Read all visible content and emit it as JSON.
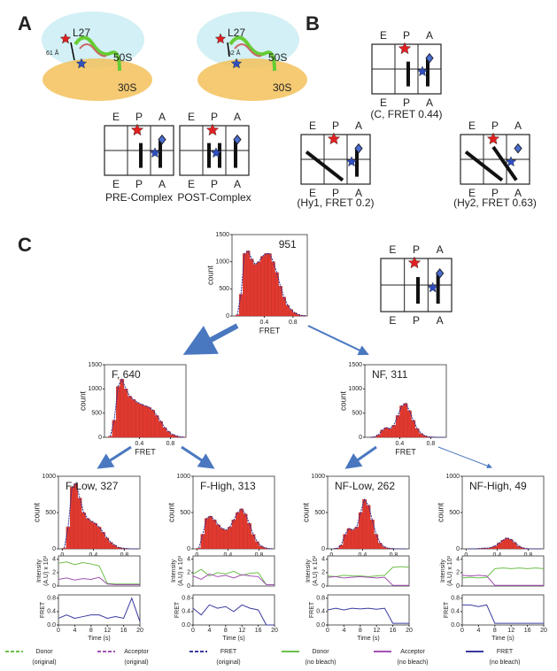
{
  "panels": {
    "A": {
      "letter": "A",
      "ribosomes": [
        {
          "l27": "L27",
          "distance": "61 Å",
          "s50": "50S",
          "s30": "30S"
        },
        {
          "l27": "L27",
          "distance": "52 Å",
          "s50": "50S",
          "s30": "30S"
        }
      ],
      "diagrams": [
        {
          "top": [
            "E",
            "P",
            "A"
          ],
          "bottom": [
            "E",
            "P",
            "A"
          ],
          "caption": "PRE-Complex"
        },
        {
          "top": [
            "E",
            "P",
            "A"
          ],
          "bottom": [
            "E",
            "P",
            "A"
          ],
          "caption": "POST-Complex"
        }
      ]
    },
    "B": {
      "letter": "B",
      "diagrams": [
        {
          "top": [
            "E",
            "P",
            "A"
          ],
          "bottom": [
            "E",
            "P",
            "A"
          ],
          "caption": "(C, FRET 0.44)"
        },
        {
          "top": [
            "E",
            "P",
            "A"
          ],
          "bottom": [
            "E",
            "P",
            "A"
          ],
          "caption": "(Hy1, FRET 0.2)"
        },
        {
          "top": [
            "E",
            "P",
            "A"
          ],
          "bottom": [
            "E",
            "P",
            "A"
          ],
          "caption": "(Hy2, FRET 0.63)"
        }
      ]
    },
    "C": {
      "letter": "C",
      "diagram": {
        "top": [
          "E",
          "P",
          "A"
        ],
        "bottom": [
          "E",
          "P",
          "A"
        ]
      },
      "bins": [
        0,
        0.05,
        0.1,
        0.15,
        0.2,
        0.25,
        0.3,
        0.35,
        0.4,
        0.45,
        0.5,
        0.55,
        0.6,
        0.65,
        0.7,
        0.75,
        0.8,
        0.85,
        0.9,
        0.95,
        1.0
      ],
      "histograms": [
        {
          "label": "951",
          "xlabel": "FRET",
          "ylabel": "count",
          "xlim": [
            -0.05,
            1.0
          ],
          "ylim": [
            0,
            1500
          ],
          "yticks": [
            0,
            500,
            1000,
            1500
          ],
          "xticks": [
            0.4,
            0.8
          ],
          "counts": [
            20,
            400,
            1150,
            1200,
            1050,
            950,
            1000,
            1100,
            1150,
            1150,
            1000,
            800,
            550,
            350,
            200,
            120,
            60,
            30,
            10,
            5
          ]
        },
        {
          "label": "F, 640",
          "xlabel": "FRET",
          "ylabel": "count",
          "xlim": [
            -0.05,
            1.0
          ],
          "ylim": [
            0,
            1500
          ],
          "yticks": [
            0,
            500,
            1000,
            1500
          ],
          "xticks": [
            0.4,
            0.8
          ],
          "counts": [
            20,
            350,
            1050,
            1200,
            1000,
            850,
            780,
            720,
            680,
            650,
            620,
            560,
            450,
            330,
            200,
            120,
            60,
            30,
            10,
            5
          ]
        },
        {
          "label": "NF, 311",
          "xlabel": "FRET",
          "ylabel": "count",
          "xlim": [
            -0.05,
            1.0
          ],
          "ylim": [
            0,
            1500
          ],
          "yticks": [
            0,
            500,
            1000,
            1500
          ],
          "xticks": [
            0.4,
            0.8
          ],
          "counts": [
            0,
            10,
            50,
            150,
            200,
            180,
            250,
            450,
            650,
            700,
            550,
            350,
            180,
            80,
            30,
            10,
            5,
            0,
            0,
            0
          ]
        },
        {
          "label": "F-Low, 327",
          "xlabel": "FRET",
          "ylabel": "count",
          "xlim": [
            -0.05,
            1.0
          ],
          "ylim": [
            0,
            1000
          ],
          "yticks": [
            0,
            500,
            1000
          ],
          "xticks": [
            0,
            0.4,
            0.8
          ],
          "counts": [
            10,
            300,
            850,
            900,
            700,
            500,
            420,
            380,
            350,
            300,
            230,
            150,
            90,
            50,
            20,
            10,
            5,
            0,
            0,
            0
          ]
        },
        {
          "label": "F-High, 313",
          "xlabel": "FRET",
          "ylabel": "count",
          "xlim": [
            -0.05,
            1.0
          ],
          "ylim": [
            0,
            1000
          ],
          "yticks": [
            0,
            500,
            1000
          ],
          "xticks": [
            0,
            0.4,
            0.8
          ],
          "counts": [
            10,
            200,
            420,
            450,
            400,
            330,
            280,
            260,
            300,
            400,
            500,
            550,
            480,
            350,
            200,
            100,
            40,
            15,
            5,
            0
          ]
        },
        {
          "label": "NF-Low, 262",
          "xlabel": "FRET",
          "ylabel": "count",
          "xlim": [
            -0.05,
            1.0
          ],
          "ylim": [
            0,
            1000
          ],
          "yticks": [
            0,
            500,
            1000
          ],
          "xticks": [
            0,
            0.4,
            0.8
          ],
          "counts": [
            0,
            10,
            50,
            200,
            280,
            260,
            300,
            500,
            680,
            600,
            400,
            200,
            80,
            30,
            10,
            5,
            0,
            0,
            0,
            0
          ]
        },
        {
          "label": "NF-High, 49",
          "xlabel": "FRET",
          "ylabel": "count",
          "xlim": [
            -0.05,
            1.0
          ],
          "ylim": [
            0,
            1000
          ],
          "yticks": [
            0,
            500,
            1000
          ],
          "xticks": [
            0,
            0.4,
            0.8
          ],
          "counts": [
            0,
            0,
            0,
            5,
            10,
            10,
            20,
            40,
            80,
            120,
            150,
            130,
            90,
            40,
            15,
            5,
            0,
            0,
            0,
            0
          ]
        }
      ],
      "traces": {
        "time": [
          0,
          2,
          4,
          6,
          8,
          10,
          12,
          14,
          16,
          18,
          20
        ],
        "intensity_label": [
          "Intensity",
          "(A.U) x 10³"
        ],
        "fret_label": "FRET",
        "time_label": "Time (s)",
        "intensity_ylim": [
          0,
          4.5
        ],
        "intensity_yticks": [
          0,
          2,
          4
        ],
        "fret_ylim": [
          0,
          0.9
        ],
        "fret_yticks": [
          {
            "value": 0,
            "label": "0.0"
          },
          0.4,
          0.8
        ],
        "xlim": [
          0,
          20
        ],
        "xticks": [
          0,
          4,
          8,
          12,
          16,
          20
        ],
        "donor_color": "#6cc04a",
        "acceptor_color": "#a050b0",
        "fret_color": "#3a3aa0",
        "molecules": [
          {
            "donor": [
              3.4,
              3.6,
              3.2,
              3.5,
              3.3,
              3.0,
              0.4,
              0.3,
              0.3,
              0.3,
              0.3
            ],
            "acceptor": [
              1.0,
              1.2,
              0.9,
              1.1,
              1.0,
              1.3,
              0.3,
              0.2,
              0.2,
              0.2,
              0.2
            ],
            "fret": [
              0.2,
              0.3,
              0.2,
              0.25,
              0.3,
              0.3,
              0.2,
              0.25,
              0.2,
              0.8,
              0.1
            ]
          },
          {
            "donor": [
              1.8,
              2.5,
              1.5,
              2.0,
              1.8,
              2.2,
              1.6,
              1.9,
              2.0,
              0.2,
              0.2
            ],
            "acceptor": [
              1.5,
              1.0,
              1.8,
              1.4,
              1.6,
              1.2,
              1.7,
              1.5,
              1.4,
              0.2,
              0.2
            ],
            "fret": [
              0.5,
              0.3,
              0.6,
              0.5,
              0.55,
              0.4,
              0.6,
              0.5,
              0.45,
              0.0,
              0.0
            ]
          },
          {
            "donor": [
              1.5,
              1.4,
              1.6,
              1.5,
              1.5,
              1.4,
              1.5,
              1.6,
              2.8,
              2.9,
              2.8
            ],
            "acceptor": [
              1.3,
              1.4,
              1.2,
              1.3,
              1.4,
              1.3,
              1.2,
              1.3,
              0.1,
              0.1,
              0.1
            ],
            "fret": [
              0.45,
              0.5,
              0.45,
              0.5,
              0.48,
              0.5,
              0.47,
              0.5,
              0.05,
              0.05,
              0.05
            ]
          },
          {
            "donor": [
              1.2,
              1.3,
              1.2,
              1.3,
              2.6,
              2.7,
              2.6,
              2.7,
              2.6,
              2.7,
              2.6
            ],
            "acceptor": [
              1.6,
              1.5,
              1.6,
              1.5,
              0.1,
              0.1,
              0.1,
              0.1,
              0.1,
              0.1,
              0.1
            ],
            "fret": [
              0.6,
              0.6,
              0.55,
              0.6,
              0.05,
              0.05,
              0.05,
              0.05,
              0.05,
              0.05,
              0.05
            ]
          }
        ]
      },
      "legend": [
        {
          "name": "Donor",
          "note": "(original)",
          "color": "#6cc04a",
          "dashed": true
        },
        {
          "name": "Acceptor",
          "note": "(original)",
          "color": "#a050b0",
          "dashed": true
        },
        {
          "name": "FRET",
          "note": "(original)",
          "color": "#3a3aa0",
          "dashed": true
        },
        {
          "name": "Donor",
          "note": "(no bleach)",
          "color": "#6cc04a",
          "dashed": false
        },
        {
          "name": "Acceptor",
          "note": "(no bleach)",
          "color": "#a050b0",
          "dashed": false
        },
        {
          "name": "FRET",
          "note": "(no bleach)",
          "color": "#3a3aa0",
          "dashed": false
        }
      ]
    }
  }
}
